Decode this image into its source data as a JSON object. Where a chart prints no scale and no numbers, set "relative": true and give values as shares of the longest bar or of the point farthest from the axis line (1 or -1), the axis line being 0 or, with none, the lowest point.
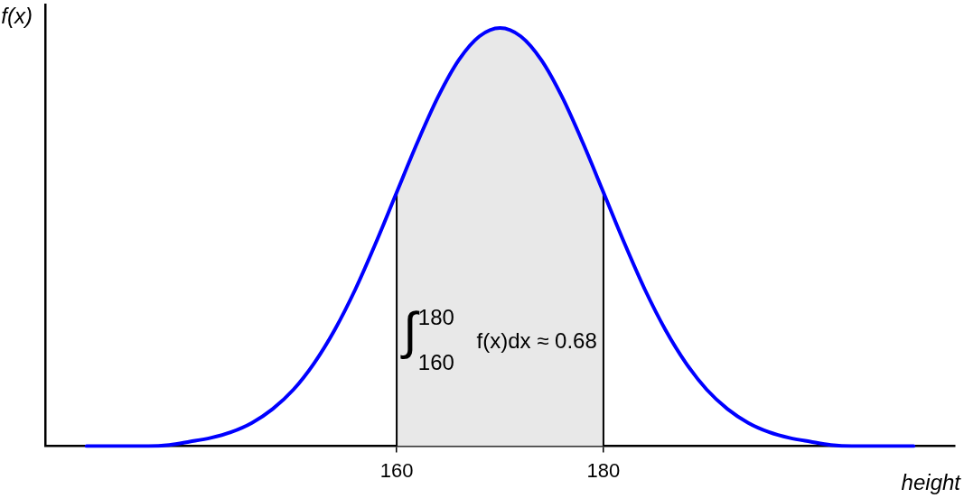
{
  "chart_data": {
    "type": "line",
    "xlabel": "height",
    "ylabel": "f(x)",
    "relative": true,
    "x": [
      130,
      132,
      134,
      136,
      138,
      140,
      142,
      144,
      146,
      148,
      150,
      152,
      154,
      156,
      158,
      160,
      162,
      164,
      166,
      168,
      170,
      172,
      174,
      176,
      178,
      180,
      182,
      184,
      186,
      188,
      190,
      192,
      194,
      196,
      198,
      200,
      202,
      204,
      206,
      208,
      210
    ],
    "xlim": [
      126,
      214
    ],
    "xticks": [
      160,
      180
    ],
    "series": [
      {
        "color": "#0000ff",
        "values": [
          0,
          0,
          0,
          0,
          0.003,
          0.011,
          0.02,
          0.034,
          0.056,
          0.089,
          0.135,
          0.198,
          0.278,
          0.375,
          0.487,
          0.607,
          0.726,
          0.835,
          0.923,
          0.98,
          1,
          0.98,
          0.923,
          0.835,
          0.726,
          0.607,
          0.487,
          0.375,
          0.278,
          0.198,
          0.135,
          0.089,
          0.056,
          0.034,
          0.02,
          0.011,
          0.003,
          0,
          0,
          0,
          0
        ]
      },
      {
        "type": "area",
        "color": "#e8e8e8",
        "x": [
          160,
          162,
          164,
          166,
          168,
          170,
          172,
          174,
          176,
          178,
          180
        ],
        "values": [
          0.607,
          0.726,
          0.835,
          0.923,
          0.98,
          1,
          0.98,
          0.923,
          0.835,
          0.726,
          0.607
        ]
      }
    ],
    "ref_lines": [
      {
        "axis": "x",
        "value": 160,
        "color": "#000000"
      },
      {
        "axis": "x",
        "value": 180,
        "color": "#000000"
      }
    ],
    "annotations": [
      "∫$_{160}$$^{180}$ f(x)dx ≈ 0.68"
    ]
  }
}
